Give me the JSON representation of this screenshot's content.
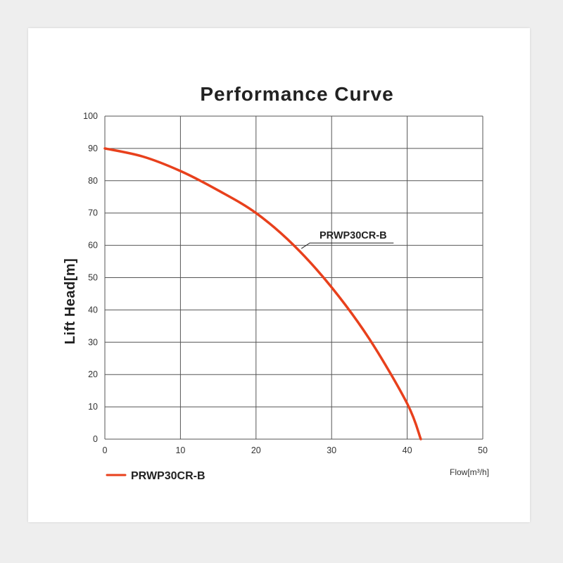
{
  "chart_data": {
    "type": "line",
    "title": "Performance Curve",
    "xlabel": "Flow[m³/h]",
    "ylabel": "Lift Head[m]",
    "xlim": [
      0,
      50
    ],
    "ylim": [
      0,
      100
    ],
    "x_ticks": [
      "0",
      "10",
      "20",
      "30",
      "40",
      "50"
    ],
    "y_ticks": [
      "0",
      "10",
      "20",
      "30",
      "40",
      "50",
      "60",
      "70",
      "80",
      "90",
      "100"
    ],
    "grid": true,
    "legend_position": "bottom-left",
    "series": [
      {
        "name": "PRWP30CR-B",
        "color": "#e8401c",
        "x": [
          0,
          5,
          10,
          15,
          20,
          25,
          30,
          35,
          40,
          41.8
        ],
        "y": [
          90,
          87.5,
          83,
          77,
          70,
          60,
          47,
          31,
          11,
          0
        ]
      }
    ],
    "annotations": [
      {
        "text": "PRWP30CR-B",
        "points_to_x": 26,
        "points_to_y": 59
      }
    ]
  }
}
